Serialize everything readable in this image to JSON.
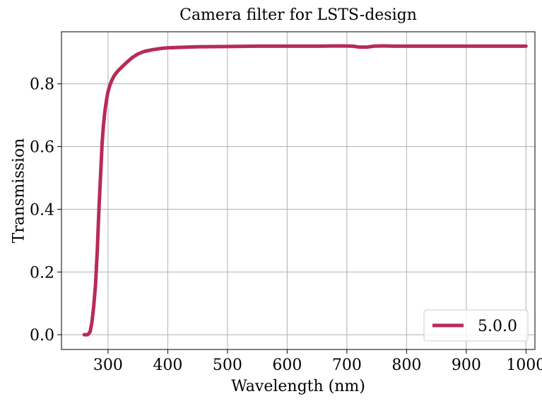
{
  "chart_data": {
    "type": "line",
    "title": "Camera filter for LSTS-design",
    "xlabel": "Wavelength (nm)",
    "ylabel": "Transmission",
    "xlim": [
      222,
      1015
    ],
    "ylim": [
      -0.047,
      0.966
    ],
    "xticks": [
      300,
      400,
      500,
      600,
      700,
      800,
      900,
      1000
    ],
    "yticks": [
      0.0,
      0.2,
      0.4,
      0.6,
      0.8
    ],
    "xtick_labels": [
      "300",
      "400",
      "500",
      "600",
      "700",
      "800",
      "900",
      "1000"
    ],
    "ytick_labels": [
      "0.0",
      "0.2",
      "0.4",
      "0.6",
      "0.8"
    ],
    "grid": true,
    "legend_position": "bottom-right",
    "series": [
      {
        "name": "5.0.0",
        "color": "#b72c55",
        "x": [
          260,
          266,
          270,
          273,
          276,
          279,
          282,
          285,
          288,
          290,
          292,
          294,
          296,
          298,
          300,
          303,
          306,
          310,
          315,
          320,
          330,
          340,
          350,
          360,
          375,
          390,
          400,
          450,
          500,
          550,
          600,
          650,
          690,
          710,
          722,
          733,
          745,
          760,
          780,
          800,
          900,
          1000
        ],
        "values": [
          0.0,
          0.0,
          0.01,
          0.04,
          0.09,
          0.16,
          0.27,
          0.41,
          0.53,
          0.61,
          0.66,
          0.7,
          0.73,
          0.755,
          0.775,
          0.795,
          0.81,
          0.825,
          0.838,
          0.848,
          0.866,
          0.883,
          0.895,
          0.903,
          0.909,
          0.913,
          0.915,
          0.918,
          0.919,
          0.92,
          0.92,
          0.92,
          0.921,
          0.92,
          0.917,
          0.917,
          0.92,
          0.921,
          0.92,
          0.92,
          0.92,
          0.92
        ]
      }
    ]
  }
}
